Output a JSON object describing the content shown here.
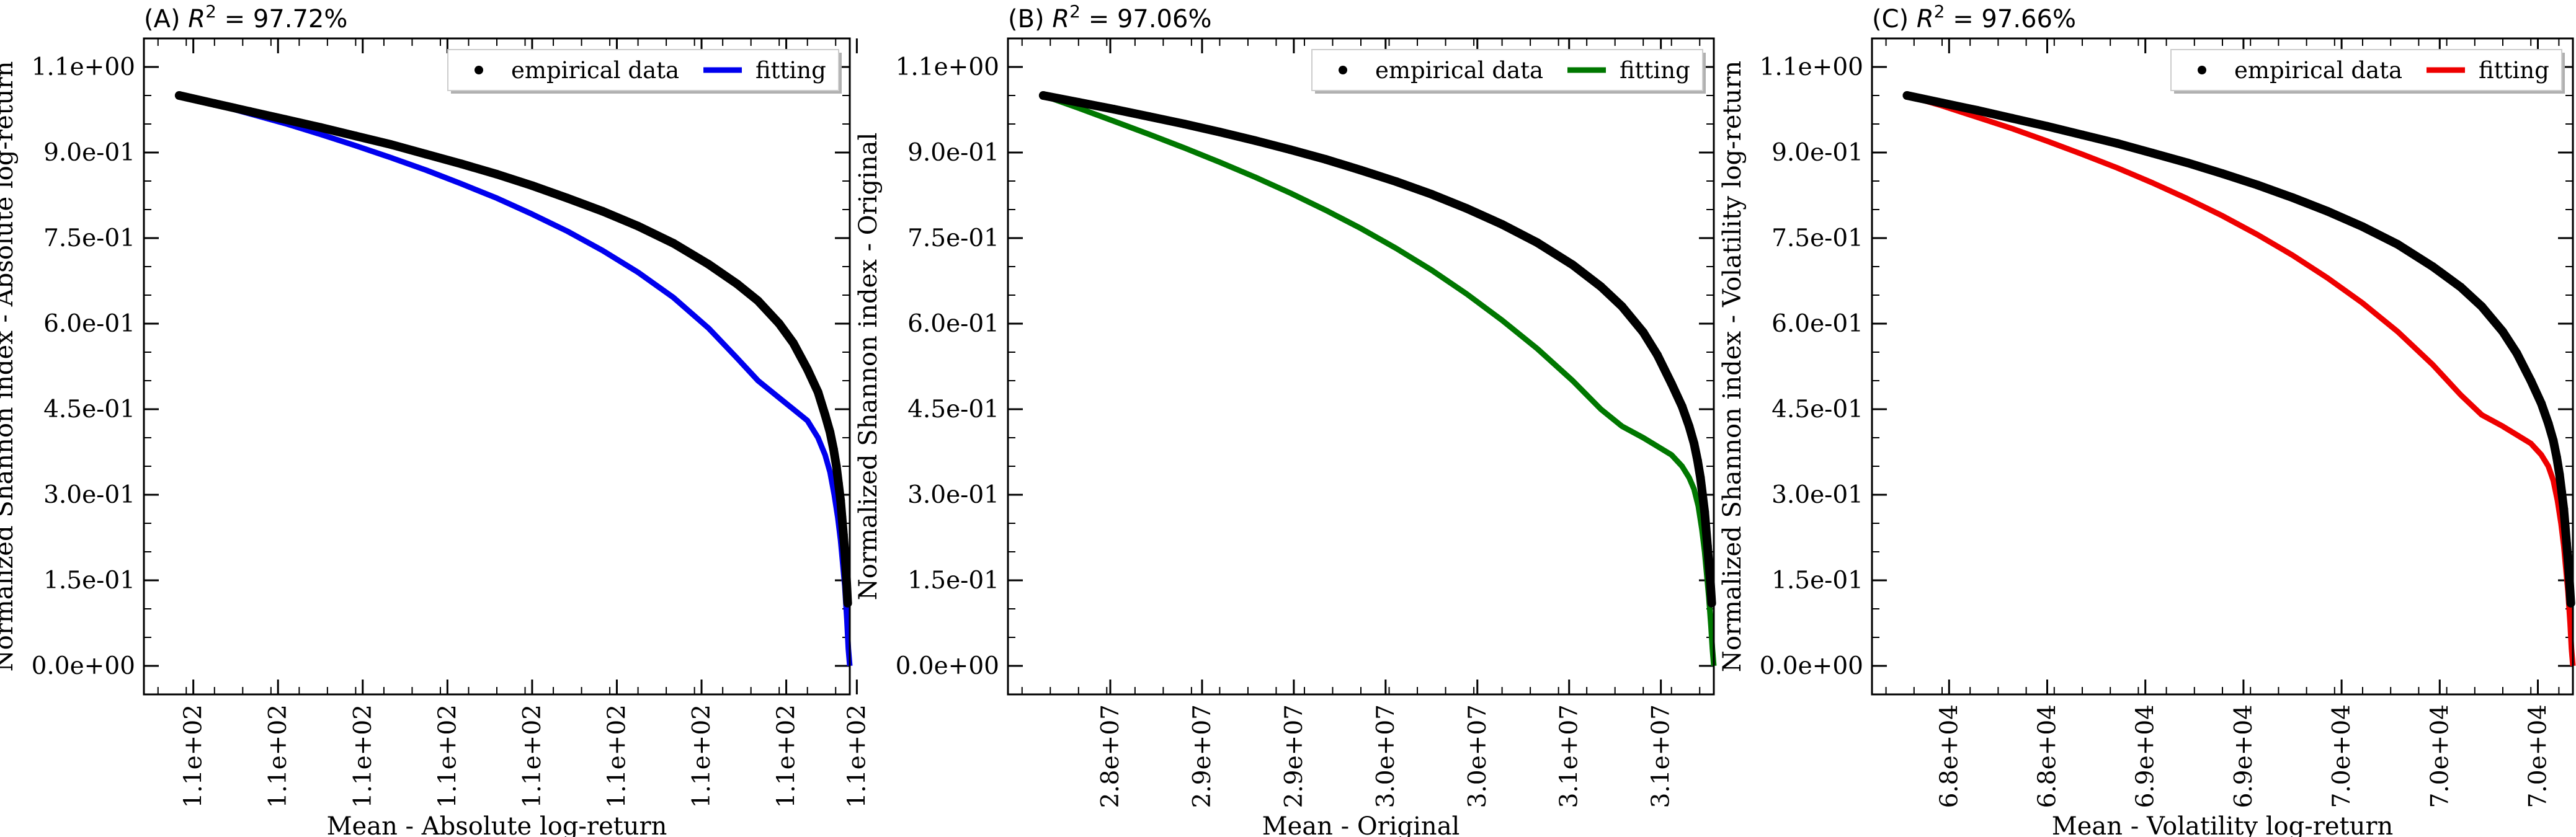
{
  "chart_data": [
    {
      "type": "line",
      "panel_label": "(A)",
      "r2_text": "= 97.72%",
      "xlabel": "Mean - Absolute log-return",
      "ylabel": "Normalized Shannon index - Absolute log-return",
      "xlim": [
        0.0,
        1.0
      ],
      "ylim": [
        -0.05,
        1.1
      ],
      "x_ticks": [
        0.07,
        0.19,
        0.31,
        0.43,
        0.55,
        0.67,
        0.79,
        0.91,
        1.01
      ],
      "x_tick_labels": [
        "1.1e+02",
        "1.1e+02",
        "1.1e+02",
        "1.1e+02",
        "1.1e+02",
        "1.1e+02",
        "1.1e+02",
        "1.1e+02",
        "1.1e+02"
      ],
      "y_ticks": [
        0.0,
        0.15,
        0.3,
        0.45,
        0.6,
        0.75,
        0.9,
        1.05
      ],
      "y_tick_labels": [
        "0.0e+00",
        "1.5e-01",
        "3.0e-01",
        "4.5e-01",
        "6.0e-01",
        "7.5e-01",
        "9.0e-01",
        "1.1e+00"
      ],
      "legend": {
        "position": "top-right",
        "entries": [
          "empirical data",
          "fitting"
        ]
      },
      "series": [
        {
          "name": "empirical data",
          "kind": "scatter",
          "color": "#000000",
          "x": [
            0.05,
            0.1,
            0.15,
            0.2,
            0.25,
            0.3,
            0.35,
            0.4,
            0.45,
            0.5,
            0.55,
            0.6,
            0.65,
            0.7,
            0.75,
            0.8,
            0.84,
            0.87,
            0.9,
            0.92,
            0.94,
            0.955,
            0.965,
            0.972,
            0.977,
            0.981,
            0.984,
            0.987,
            0.989,
            0.991,
            0.993,
            0.995,
            0.997
          ],
          "y": [
            1.0,
            0.986,
            0.972,
            0.958,
            0.944,
            0.929,
            0.914,
            0.897,
            0.88,
            0.862,
            0.842,
            0.82,
            0.797,
            0.771,
            0.741,
            0.704,
            0.67,
            0.64,
            0.6,
            0.566,
            0.52,
            0.48,
            0.44,
            0.41,
            0.38,
            0.35,
            0.32,
            0.29,
            0.26,
            0.23,
            0.2,
            0.16,
            0.11
          ]
        },
        {
          "name": "fitting",
          "kind": "line",
          "color": "#0000ee",
          "x": [
            0.05,
            0.1,
            0.15,
            0.2,
            0.25,
            0.3,
            0.35,
            0.4,
            0.45,
            0.5,
            0.55,
            0.6,
            0.65,
            0.7,
            0.75,
            0.8,
            0.84,
            0.87,
            0.9,
            0.92,
            0.94,
            0.955,
            0.965,
            0.972,
            0.978,
            0.983,
            0.987,
            0.99,
            0.993,
            0.996,
            0.998,
            1.0
          ],
          "y": [
            1.0,
            0.985,
            0.968,
            0.951,
            0.932,
            0.912,
            0.891,
            0.869,
            0.845,
            0.82,
            0.792,
            0.762,
            0.728,
            0.69,
            0.646,
            0.592,
            0.54,
            0.5,
            0.47,
            0.45,
            0.43,
            0.4,
            0.37,
            0.34,
            0.3,
            0.26,
            0.22,
            0.18,
            0.14,
            0.08,
            0.03,
            0.0
          ]
        }
      ]
    },
    {
      "type": "line",
      "panel_label": "(B)",
      "r2_text": "= 97.06%",
      "xlabel": "Mean - Original",
      "ylabel": "Normalized Shannon index - Original",
      "xlim": [
        0.0,
        1.0
      ],
      "ylim": [
        -0.05,
        1.1
      ],
      "x_ticks": [
        0.145,
        0.275,
        0.405,
        0.535,
        0.665,
        0.795,
        0.925
      ],
      "x_tick_labels": [
        "2.8e+07",
        "2.9e+07",
        "2.9e+07",
        "3.0e+07",
        "3.0e+07",
        "3.1e+07",
        "3.1e+07"
      ],
      "y_ticks": [
        0.0,
        0.15,
        0.3,
        0.45,
        0.6,
        0.75,
        0.9,
        1.05
      ],
      "y_tick_labels": [
        "0.0e+00",
        "1.5e-01",
        "3.0e-01",
        "4.5e-01",
        "6.0e-01",
        "7.5e-01",
        "9.0e-01",
        "1.1e+00"
      ],
      "legend": {
        "position": "top-right",
        "entries": [
          "empirical data",
          "fitting"
        ]
      },
      "series": [
        {
          "name": "empirical data",
          "kind": "scatter",
          "color": "#000000",
          "x": [
            0.05,
            0.1,
            0.15,
            0.2,
            0.25,
            0.3,
            0.35,
            0.4,
            0.45,
            0.5,
            0.55,
            0.6,
            0.65,
            0.7,
            0.75,
            0.8,
            0.84,
            0.87,
            0.9,
            0.92,
            0.94,
            0.955,
            0.965,
            0.972,
            0.977,
            0.981,
            0.984,
            0.987,
            0.989,
            0.991,
            0.993,
            0.995,
            0.997
          ],
          "y": [
            1.0,
            0.988,
            0.976,
            0.963,
            0.95,
            0.936,
            0.921,
            0.905,
            0.888,
            0.869,
            0.849,
            0.827,
            0.802,
            0.774,
            0.742,
            0.703,
            0.665,
            0.63,
            0.585,
            0.545,
            0.495,
            0.455,
            0.42,
            0.39,
            0.36,
            0.33,
            0.3,
            0.27,
            0.24,
            0.21,
            0.18,
            0.15,
            0.11
          ]
        },
        {
          "name": "fitting",
          "kind": "line",
          "color": "#007700",
          "x": [
            0.05,
            0.1,
            0.15,
            0.2,
            0.25,
            0.3,
            0.35,
            0.4,
            0.45,
            0.5,
            0.55,
            0.6,
            0.65,
            0.7,
            0.75,
            0.8,
            0.84,
            0.87,
            0.9,
            0.92,
            0.94,
            0.955,
            0.965,
            0.972,
            0.978,
            0.983,
            0.987,
            0.99,
            0.993,
            0.996,
            0.998,
            1.0
          ],
          "y": [
            1.0,
            0.978,
            0.955,
            0.932,
            0.908,
            0.883,
            0.857,
            0.829,
            0.799,
            0.767,
            0.732,
            0.694,
            0.652,
            0.606,
            0.556,
            0.5,
            0.45,
            0.42,
            0.4,
            0.385,
            0.37,
            0.35,
            0.33,
            0.31,
            0.28,
            0.24,
            0.2,
            0.16,
            0.12,
            0.07,
            0.03,
            0.0
          ]
        }
      ]
    },
    {
      "type": "line",
      "panel_label": "(C)",
      "r2_text": "= 97.66%",
      "xlabel": "Mean - Volatility log-return",
      "ylabel": "Normalized Shannon index - Volatility log-return",
      "xlim": [
        0.0,
        1.0
      ],
      "ylim": [
        -0.05,
        1.1
      ],
      "x_ticks": [
        0.11,
        0.25,
        0.39,
        0.53,
        0.67,
        0.81,
        0.95
      ],
      "x_tick_labels": [
        "6.8e+04",
        "6.8e+04",
        "6.9e+04",
        "6.9e+04",
        "7.0e+04",
        "7.0e+04",
        "7.0e+04"
      ],
      "y_ticks": [
        0.0,
        0.15,
        0.3,
        0.45,
        0.6,
        0.75,
        0.9,
        1.05
      ],
      "y_tick_labels": [
        "0.0e+00",
        "1.5e-01",
        "3.0e-01",
        "4.5e-01",
        "6.0e-01",
        "7.5e-01",
        "9.0e-01",
        "1.1e+00"
      ],
      "legend": {
        "position": "top-right",
        "entries": [
          "empirical data",
          "fitting"
        ]
      },
      "series": [
        {
          "name": "empirical data",
          "kind": "scatter",
          "color": "#000000",
          "x": [
            0.05,
            0.1,
            0.15,
            0.2,
            0.25,
            0.3,
            0.35,
            0.4,
            0.45,
            0.5,
            0.55,
            0.6,
            0.65,
            0.7,
            0.75,
            0.8,
            0.84,
            0.87,
            0.9,
            0.92,
            0.94,
            0.955,
            0.965,
            0.972,
            0.977,
            0.981,
            0.984,
            0.987,
            0.989,
            0.991,
            0.993,
            0.995,
            0.997
          ],
          "y": [
            1.0,
            0.987,
            0.974,
            0.96,
            0.946,
            0.931,
            0.916,
            0.899,
            0.882,
            0.863,
            0.843,
            0.821,
            0.797,
            0.77,
            0.739,
            0.7,
            0.664,
            0.63,
            0.586,
            0.548,
            0.5,
            0.46,
            0.425,
            0.395,
            0.365,
            0.335,
            0.305,
            0.275,
            0.245,
            0.215,
            0.185,
            0.15,
            0.11
          ]
        },
        {
          "name": "fitting",
          "kind": "line",
          "color": "#ee0000",
          "x": [
            0.05,
            0.1,
            0.15,
            0.2,
            0.25,
            0.3,
            0.35,
            0.4,
            0.45,
            0.5,
            0.55,
            0.6,
            0.65,
            0.7,
            0.75,
            0.8,
            0.84,
            0.87,
            0.9,
            0.92,
            0.94,
            0.955,
            0.965,
            0.972,
            0.978,
            0.983,
            0.987,
            0.99,
            0.993,
            0.996,
            0.998,
            1.0
          ],
          "y": [
            1.0,
            0.982,
            0.962,
            0.942,
            0.92,
            0.897,
            0.873,
            0.847,
            0.819,
            0.789,
            0.756,
            0.72,
            0.68,
            0.636,
            0.586,
            0.528,
            0.475,
            0.44,
            0.42,
            0.405,
            0.39,
            0.37,
            0.35,
            0.325,
            0.29,
            0.25,
            0.21,
            0.17,
            0.13,
            0.075,
            0.03,
            0.0
          ]
        }
      ]
    }
  ]
}
